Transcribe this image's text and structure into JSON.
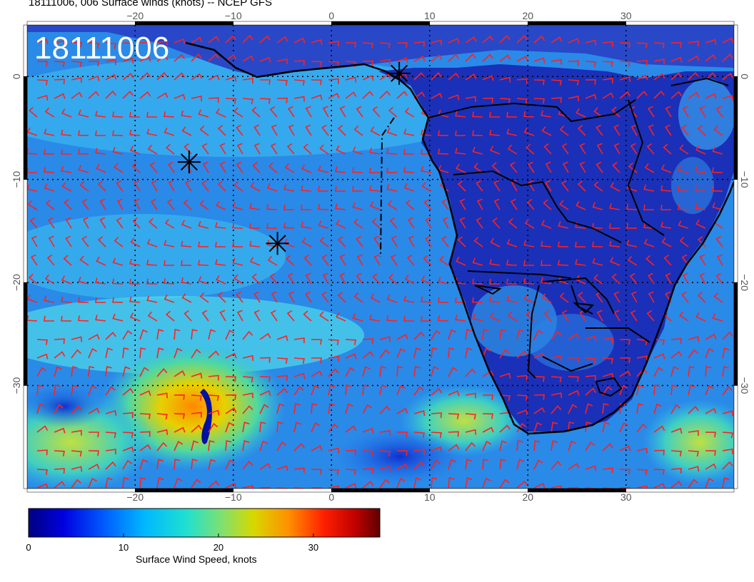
{
  "figure": {
    "title": "18111006, 006 Surface winds (knots) -- NCEP GFS",
    "stamp": "18111006"
  },
  "map": {
    "projection": "cylindrical",
    "lon_range": [
      -31,
      41
    ],
    "lat_range": [
      -40,
      5
    ],
    "lon_ticks": [
      -20,
      -10,
      0,
      10,
      20,
      30
    ],
    "lon_tick_labels": [
      "−20",
      "−10",
      "0",
      "10",
      "20",
      "30"
    ],
    "lat_ticks": [
      0,
      -10,
      -20,
      -30
    ],
    "lat_tick_labels": [
      "0",
      "−10",
      "−20",
      "−30"
    ],
    "grid_lines": "dotted",
    "coastlines": "black",
    "country_borders": "black",
    "storm_markers": [
      {
        "lon": -14.5,
        "lat": -8.3
      },
      {
        "lon": -5.5,
        "lat": -16.2
      },
      {
        "lon": 6.9,
        "lat": 0.3
      }
    ],
    "wind_barb_color": "#ff2020"
  },
  "colorbar": {
    "label": "Surface Wind Speed, knots",
    "range": [
      0,
      37
    ],
    "ticks": [
      0,
      10,
      20,
      30
    ],
    "tick_labels": [
      "0",
      "10",
      "20",
      "30"
    ],
    "colors": [
      "#000080",
      "#0000e0",
      "#0060ff",
      "#00b8ff",
      "#20e0d0",
      "#80e070",
      "#d8d800",
      "#ff9000",
      "#ff2000",
      "#c00000",
      "#600000"
    ]
  }
}
